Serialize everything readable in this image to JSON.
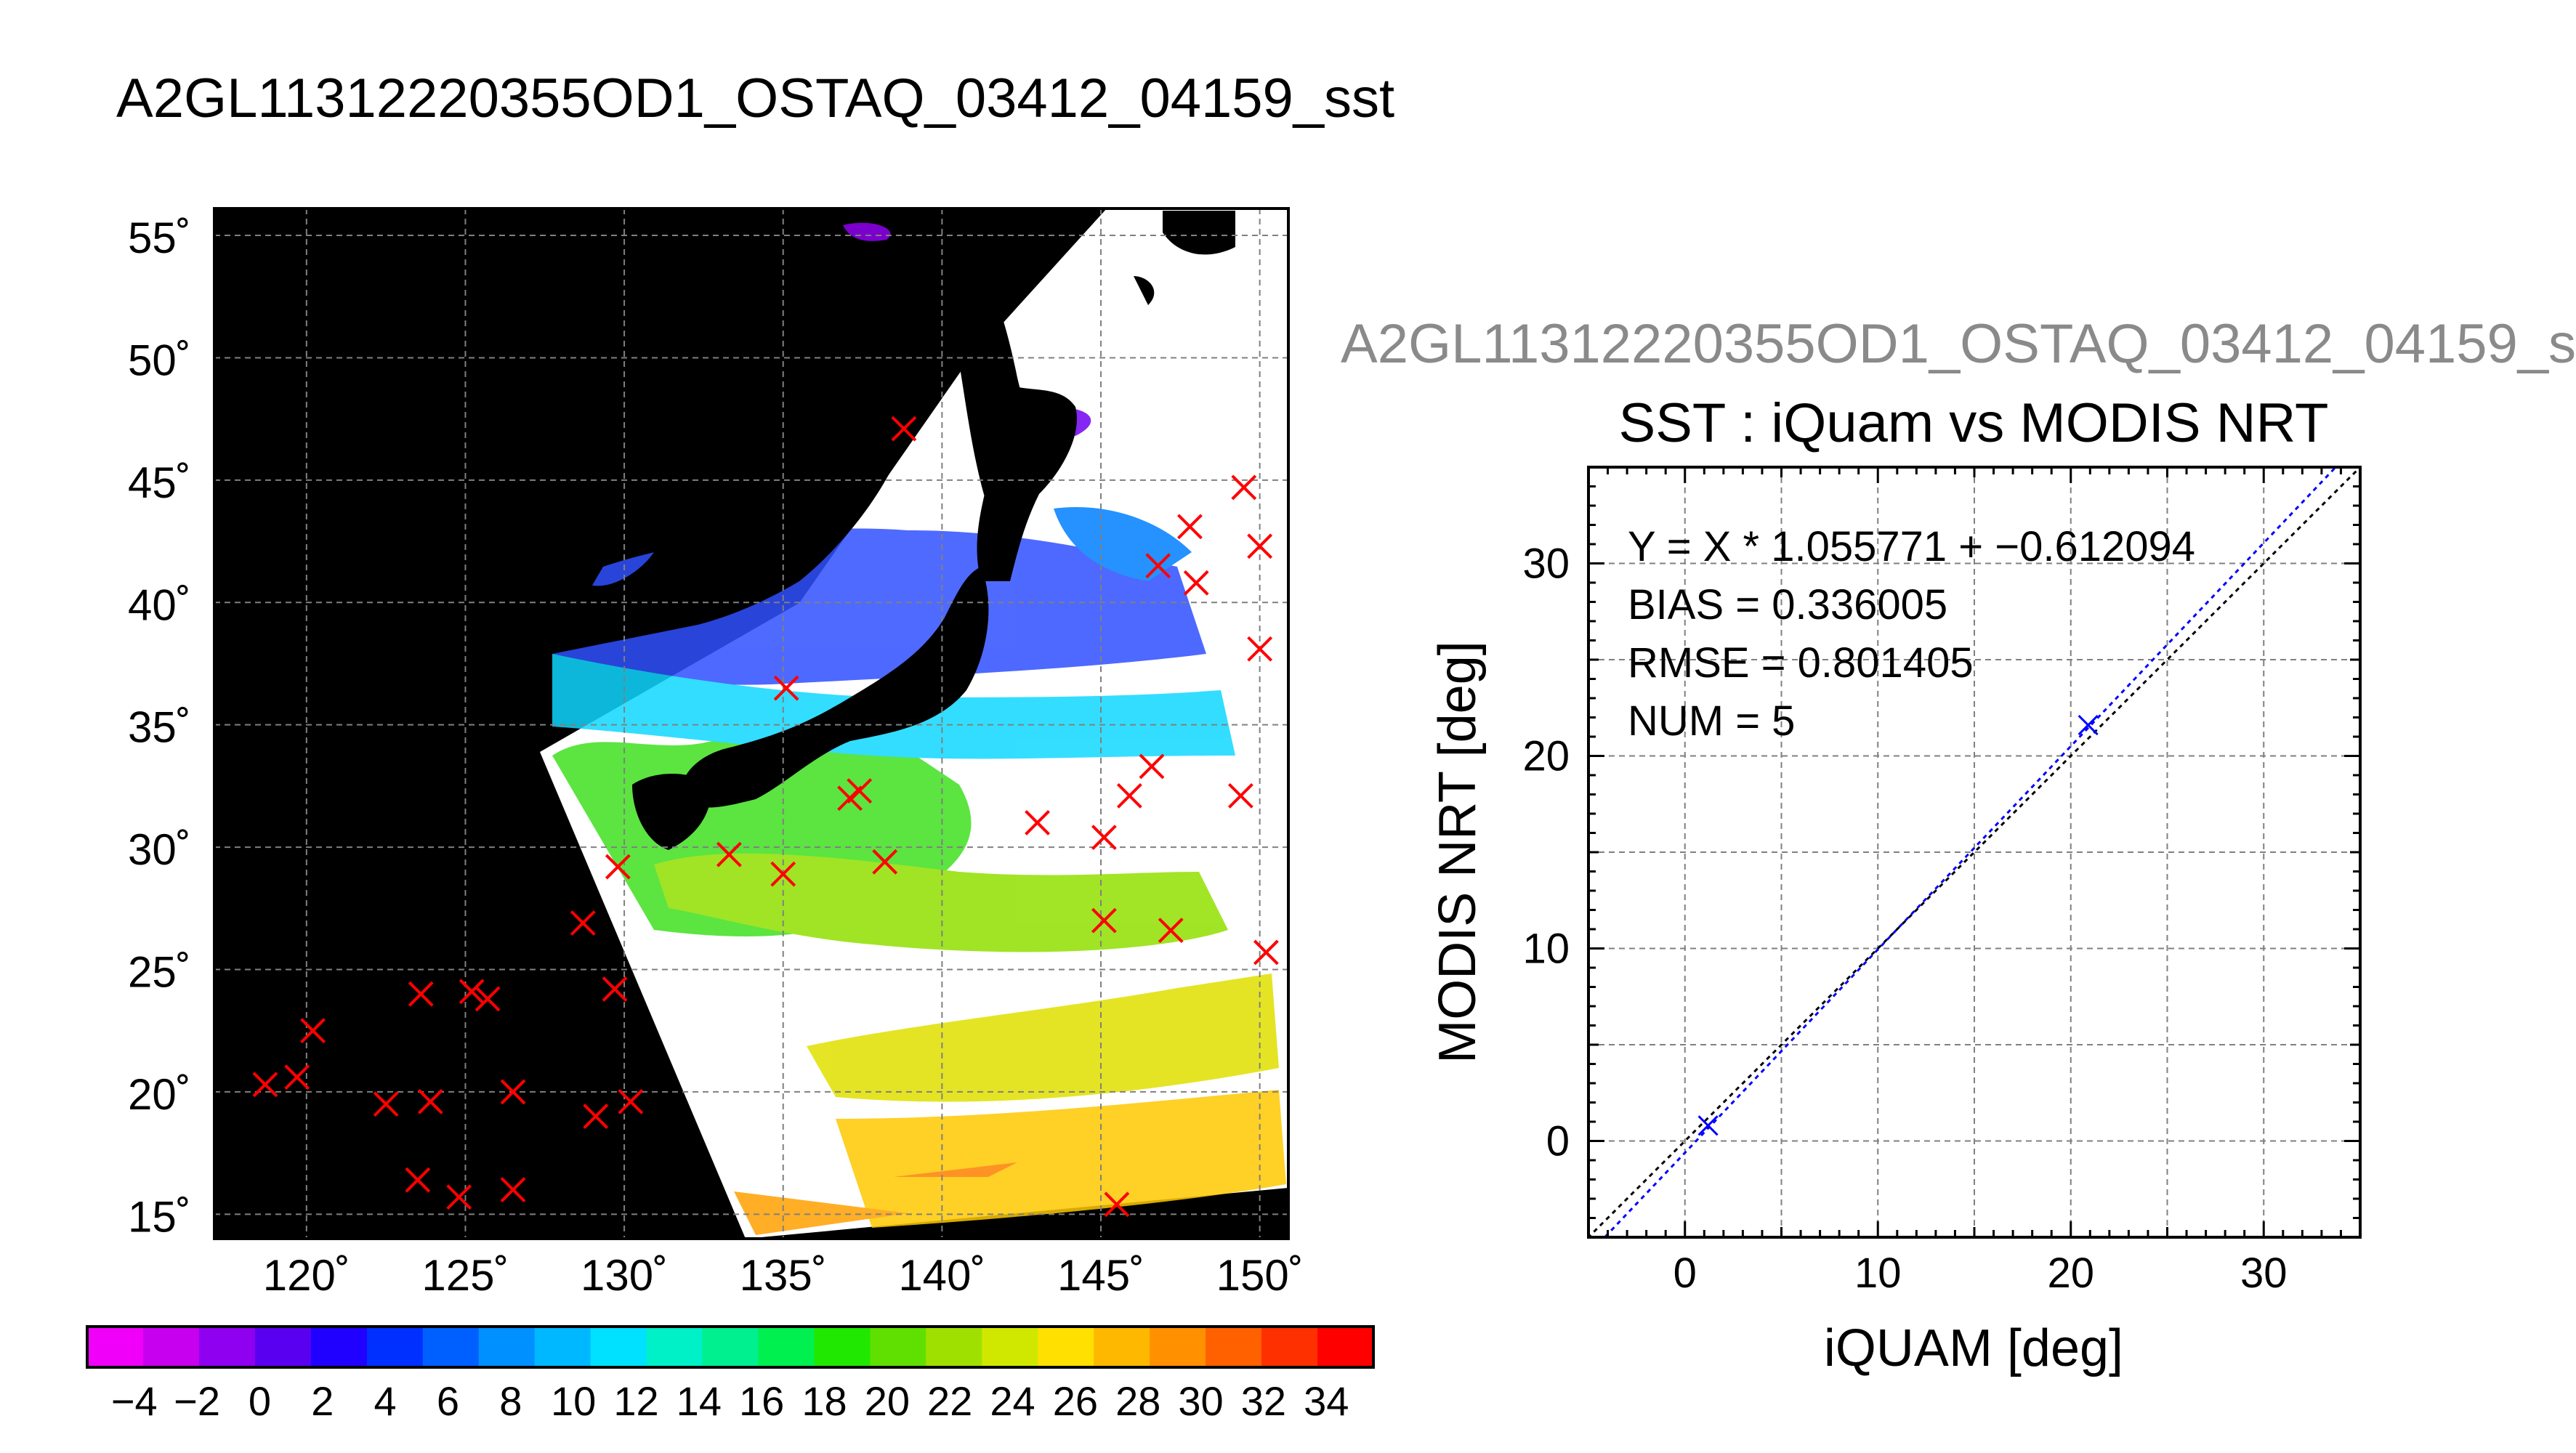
{
  "page_title": "A2GL11312220355OD1_OSTAQ_03412_04159_sst",
  "scatter_subtitle": "A2GL11312220355OD1_OSTAQ_03412_04159_s",
  "colorbar": {
    "tick_labels": [
      "−4",
      "−2",
      "0",
      "2",
      "4",
      "6",
      "8",
      "10",
      "12",
      "14",
      "16",
      "18",
      "20",
      "22",
      "24",
      "26",
      "28",
      "30",
      "32",
      "34"
    ],
    "colors": [
      "#f000f8",
      "#c800f0",
      "#9000f0",
      "#5a00f0",
      "#2000ff",
      "#0030ff",
      "#0060ff",
      "#0090ff",
      "#00b8ff",
      "#00e0ff",
      "#00f0c8",
      "#00f090",
      "#00f050",
      "#20e800",
      "#60e000",
      "#a0e000",
      "#d0e800",
      "#ffe000",
      "#ffb800",
      "#ff9000",
      "#ff6000",
      "#ff3000",
      "#ff0000"
    ]
  },
  "map": {
    "lat_labels": [
      "55˚",
      "50˚",
      "45˚",
      "40˚",
      "35˚",
      "30˚",
      "25˚",
      "20˚",
      "15˚"
    ],
    "lon_labels": [
      "120˚",
      "125˚",
      "130˚",
      "135˚",
      "140˚",
      "145˚",
      "150˚"
    ],
    "marker_color": "#ff0000",
    "markers": [
      [
        138.8,
        47.1
      ],
      [
        149.5,
        44.7
      ],
      [
        147.8,
        43.1
      ],
      [
        150.0,
        42.3
      ],
      [
        146.8,
        41.5
      ],
      [
        148.0,
        40.8
      ],
      [
        150.0,
        38.1
      ],
      [
        135.1,
        36.5
      ],
      [
        146.6,
        33.3
      ],
      [
        149.4,
        32.1
      ],
      [
        145.9,
        32.1
      ],
      [
        137.4,
        32.3
      ],
      [
        137.1,
        32.0
      ],
      [
        143.0,
        31.0
      ],
      [
        145.1,
        30.4
      ],
      [
        133.3,
        29.7
      ],
      [
        138.2,
        29.4
      ],
      [
        135.0,
        28.9
      ],
      [
        129.8,
        29.2
      ],
      [
        145.1,
        27.0
      ],
      [
        147.2,
        26.6
      ],
      [
        128.7,
        26.9
      ],
      [
        150.2,
        25.7
      ],
      [
        129.7,
        24.2
      ],
      [
        123.6,
        24.0
      ],
      [
        125.2,
        24.1
      ],
      [
        125.7,
        23.8
      ],
      [
        120.2,
        22.5
      ],
      [
        118.7,
        20.3
      ],
      [
        119.7,
        20.6
      ],
      [
        122.5,
        19.5
      ],
      [
        123.9,
        19.6
      ],
      [
        126.5,
        20.0
      ],
      [
        129.1,
        19.0
      ],
      [
        130.2,
        19.6
      ],
      [
        123.5,
        16.4
      ],
      [
        124.8,
        15.7
      ],
      [
        126.5,
        16.0
      ],
      [
        145.5,
        15.4
      ]
    ]
  },
  "chart_data": {
    "type": "scatter",
    "title": "SST : iQuam vs MODIS NRT",
    "xlabel": "iQUAM [deg]",
    "ylabel": "MODIS NRT [deg]",
    "xlim": [
      -5,
      35
    ],
    "ylim": [
      -5,
      35
    ],
    "x_ticks": [
      "0",
      "10",
      "20",
      "30"
    ],
    "y_ticks": [
      "0",
      "10",
      "20",
      "30"
    ],
    "grid": true,
    "points": [
      [
        1.2,
        0.8
      ],
      [
        20.9,
        21.6
      ]
    ],
    "fit": {
      "slope": 1.055771,
      "intercept": -0.612094
    },
    "annotations": [
      "Y = X * 1.055771 + −0.612094",
      "BIAS = 0.336005",
      "RMSE = 0.801405",
      "NUM = 5"
    ],
    "point_color": "#0000ff",
    "fit_color": "#0000ff",
    "identity_color": "#000000"
  }
}
